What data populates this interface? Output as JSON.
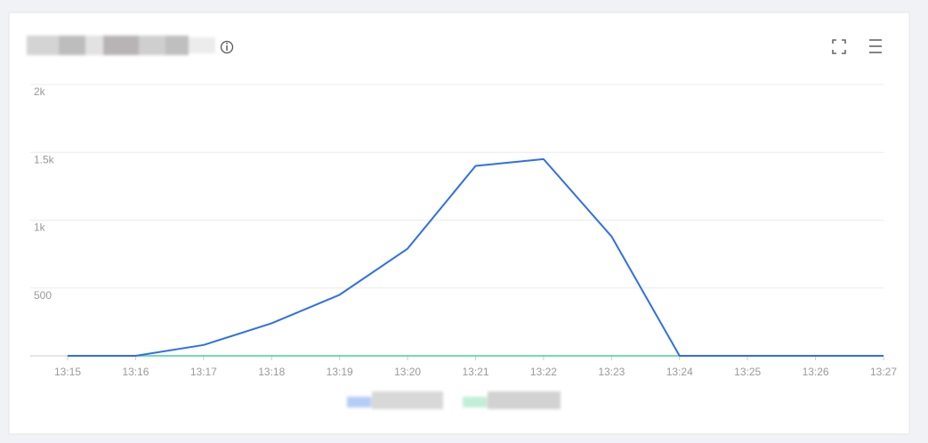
{
  "chart_data": {
    "type": "line",
    "categories": [
      "13:15",
      "13:16",
      "13:17",
      "13:18",
      "13:19",
      "13:20",
      "13:21",
      "13:22",
      "13:23",
      "13:24",
      "13:25",
      "13:26",
      "13:27"
    ],
    "series": [
      {
        "color": "#2f6fe8",
        "values": [
          0,
          0,
          80,
          240,
          450,
          790,
          1400,
          1450,
          880,
          0,
          0,
          0,
          0
        ]
      },
      {
        "color": "#4ccf8f",
        "values": [
          0,
          0,
          0,
          0,
          0,
          0,
          0,
          0,
          0,
          0,
          0,
          0,
          0
        ]
      }
    ],
    "ylim": [
      0,
      2000
    ],
    "yticks": [
      500,
      {
        "value": 1000,
        "label": "1k"
      },
      {
        "value": 1500,
        "label": "1.5k"
      },
      {
        "value": 2000,
        "label": "2k"
      }
    ],
    "grid": true
  }
}
